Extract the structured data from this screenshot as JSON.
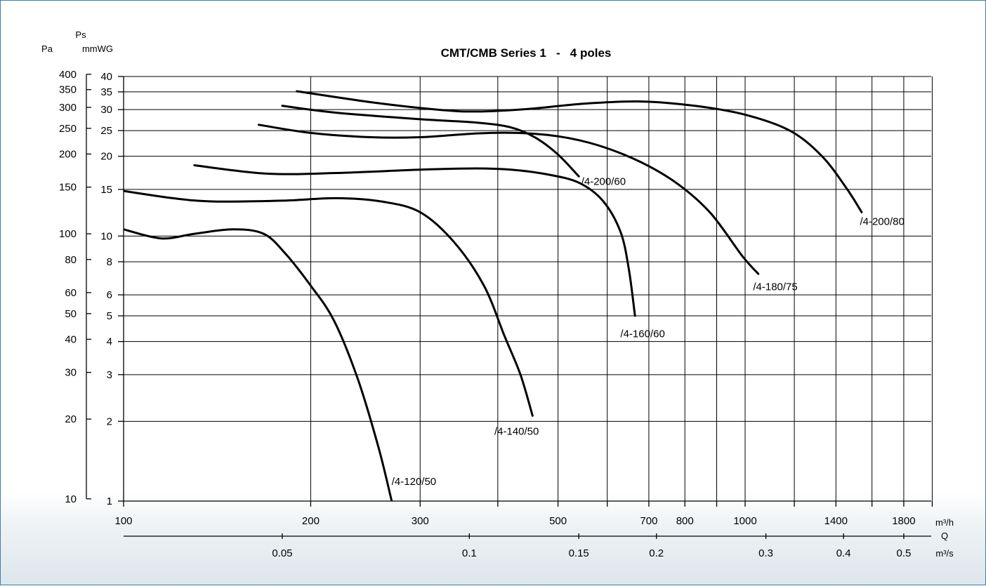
{
  "chart_data": {
    "type": "line",
    "title": "CMT/CMB Series 1   -   4 poles",
    "y_axis_header": "Ps",
    "y_units": {
      "pa": "Pa",
      "mmwg": "mmWG"
    },
    "x_units": {
      "m3h": "m³/h",
      "q": "Q",
      "m3s": "m³/s"
    },
    "x_scale": "log",
    "y_scale": "log",
    "xlim": [
      100,
      2000
    ],
    "ylim_mmwg": [
      1,
      40
    ],
    "grid": true,
    "x_ticks_m3h": [
      "100",
      "200",
      "300",
      "500",
      "700",
      "800",
      "1000",
      "1400",
      "1800"
    ],
    "x_ticks_m3s": [
      "0.05",
      "0.1",
      "0.15",
      "0.2",
      "0.3",
      "0.4",
      "0.5"
    ],
    "y_ticks_pa": [
      "400",
      "350",
      "300",
      "250",
      "200",
      "150",
      "100",
      "80",
      "60",
      "50",
      "40",
      "30",
      "20",
      "10"
    ],
    "y_ticks_mmwg": [
      "40",
      "35",
      "30",
      "25",
      "20",
      "15",
      "10",
      "8",
      "6",
      "5",
      "4",
      "3",
      "2",
      "1"
    ],
    "series": [
      {
        "name": "/4-120/50",
        "points": [
          [
            100,
            10.6
          ],
          [
            115,
            9.8
          ],
          [
            130,
            10.2
          ],
          [
            150,
            10.6
          ],
          [
            168,
            10.2
          ],
          [
            182,
            8.6
          ],
          [
            200,
            6.5
          ],
          [
            218,
            4.8
          ],
          [
            238,
            2.9
          ],
          [
            257,
            1.6
          ],
          [
            270,
            1.0
          ]
        ]
      },
      {
        "name": "/4-140/50",
        "points": [
          [
            100,
            14.8
          ],
          [
            120,
            13.9
          ],
          [
            140,
            13.5
          ],
          [
            180,
            13.6
          ],
          [
            220,
            13.9
          ],
          [
            260,
            13.5
          ],
          [
            300,
            12.3
          ],
          [
            340,
            9.5
          ],
          [
            380,
            6.5
          ],
          [
            410,
            4.2
          ],
          [
            435,
            3.0
          ],
          [
            455,
            2.1
          ]
        ]
      },
      {
        "name": "/4-160/60",
        "points": [
          [
            130,
            18.5
          ],
          [
            170,
            17.2
          ],
          [
            220,
            17.3
          ],
          [
            300,
            17.8
          ],
          [
            370,
            18.0
          ],
          [
            420,
            17.8
          ],
          [
            480,
            17.1
          ],
          [
            540,
            15.9
          ],
          [
            590,
            13.6
          ],
          [
            630,
            10.4
          ],
          [
            650,
            7.5
          ],
          [
            665,
            5.0
          ]
        ]
      },
      {
        "name": "/4-180/75",
        "points": [
          [
            165,
            26.3
          ],
          [
            200,
            24.5
          ],
          [
            250,
            23.6
          ],
          [
            300,
            23.6
          ],
          [
            370,
            24.4
          ],
          [
            430,
            24.5
          ],
          [
            500,
            23.8
          ],
          [
            580,
            22.0
          ],
          [
            680,
            19.0
          ],
          [
            780,
            15.7
          ],
          [
            880,
            12.2
          ],
          [
            990,
            8.4
          ],
          [
            1050,
            7.2
          ]
        ]
      },
      {
        "name": "/4-200/60",
        "points": [
          [
            180,
            31.0
          ],
          [
            220,
            29.2
          ],
          [
            300,
            27.6
          ],
          [
            370,
            26.8
          ],
          [
            420,
            25.7
          ],
          [
            460,
            23.5
          ],
          [
            500,
            20.3
          ],
          [
            540,
            16.8
          ]
        ]
      },
      {
        "name": "/4-200/80",
        "points": [
          [
            190,
            35.2
          ],
          [
            250,
            32.0
          ],
          [
            320,
            30.0
          ],
          [
            370,
            29.5
          ],
          [
            450,
            30.2
          ],
          [
            550,
            31.6
          ],
          [
            680,
            32.2
          ],
          [
            830,
            31.0
          ],
          [
            1000,
            28.7
          ],
          [
            1180,
            25.0
          ],
          [
            1330,
            20.0
          ],
          [
            1460,
            15.0
          ],
          [
            1540,
            12.3
          ]
        ]
      }
    ],
    "labels": [
      {
        "text": "/4-120/50",
        "at": [
          270,
          1.15
        ]
      },
      {
        "text": "/4-140/50",
        "at": [
          395,
          1.78
        ]
      },
      {
        "text": "/4-160/60",
        "at": [
          630,
          4.15
        ]
      },
      {
        "text": "/4-180/75",
        "at": [
          1030,
          6.25
        ]
      },
      {
        "text": "/4-200/60",
        "at": [
          545,
          15.6
        ]
      },
      {
        "text": "/4-200/80",
        "at": [
          1530,
          11.0
        ]
      }
    ]
  }
}
